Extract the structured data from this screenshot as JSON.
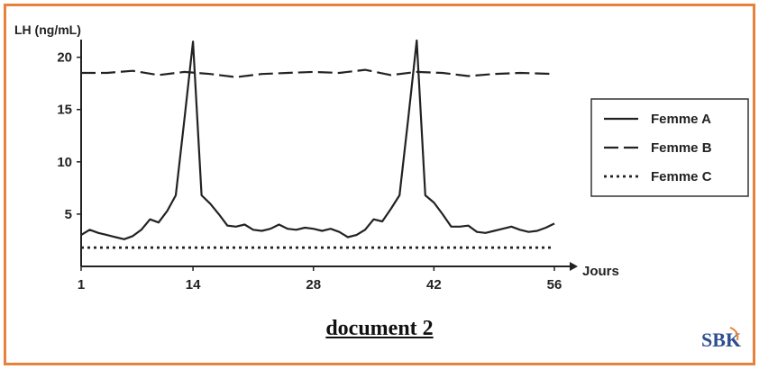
{
  "chart_data": {
    "type": "line",
    "ylabel": "LH (ng/mL)",
    "xlabel": "Jours",
    "xlim": [
      1,
      56
    ],
    "ylim": [
      0,
      21
    ],
    "x_ticks": [
      1,
      14,
      28,
      42,
      56
    ],
    "y_ticks": [
      5,
      10,
      15,
      20
    ],
    "grid": false,
    "legend_position": "right",
    "series": [
      {
        "name": "Femme A",
        "style": "solid",
        "x": [
          1,
          2,
          3,
          4,
          5,
          6,
          7,
          8,
          9,
          10,
          11,
          12,
          13,
          14,
          15,
          16,
          17,
          18,
          19,
          20,
          21,
          22,
          23,
          24,
          25,
          26,
          27,
          28,
          29,
          30,
          31,
          32,
          33,
          34,
          35,
          36,
          37,
          38,
          39,
          40,
          41,
          42,
          43,
          44,
          45,
          46,
          47,
          48,
          49,
          50,
          51,
          52,
          53,
          54,
          55,
          56
        ],
        "values": [
          3.0,
          3.5,
          3.2,
          3.0,
          2.8,
          2.6,
          2.9,
          3.5,
          4.5,
          4.2,
          5.3,
          6.8,
          14.0,
          21.5,
          6.8,
          6.0,
          5.0,
          3.9,
          3.8,
          4.0,
          3.5,
          3.4,
          3.6,
          4.0,
          3.6,
          3.5,
          3.7,
          3.6,
          3.4,
          3.6,
          3.3,
          2.8,
          3.0,
          3.5,
          4.5,
          4.3,
          5.5,
          6.8,
          14.0,
          21.6,
          6.8,
          6.1,
          5.0,
          3.8,
          3.8,
          3.9,
          3.3,
          3.2,
          3.4,
          3.6,
          3.8,
          3.5,
          3.3,
          3.4,
          3.7,
          4.1
        ]
      },
      {
        "name": "Femme B",
        "style": "dashed",
        "x": [
          1,
          4,
          7,
          10,
          13,
          16,
          19,
          22,
          25,
          28,
          31,
          34,
          37,
          40,
          43,
          46,
          49,
          52,
          56
        ],
        "values": [
          18.5,
          18.5,
          18.7,
          18.3,
          18.6,
          18.4,
          18.1,
          18.4,
          18.5,
          18.6,
          18.5,
          18.8,
          18.3,
          18.6,
          18.5,
          18.2,
          18.4,
          18.5,
          18.4
        ]
      },
      {
        "name": "Femme C",
        "style": "dotted",
        "x": [
          1,
          56
        ],
        "values": [
          1.8,
          1.8
        ]
      }
    ]
  },
  "caption": "document 2",
  "logo": "SBK"
}
